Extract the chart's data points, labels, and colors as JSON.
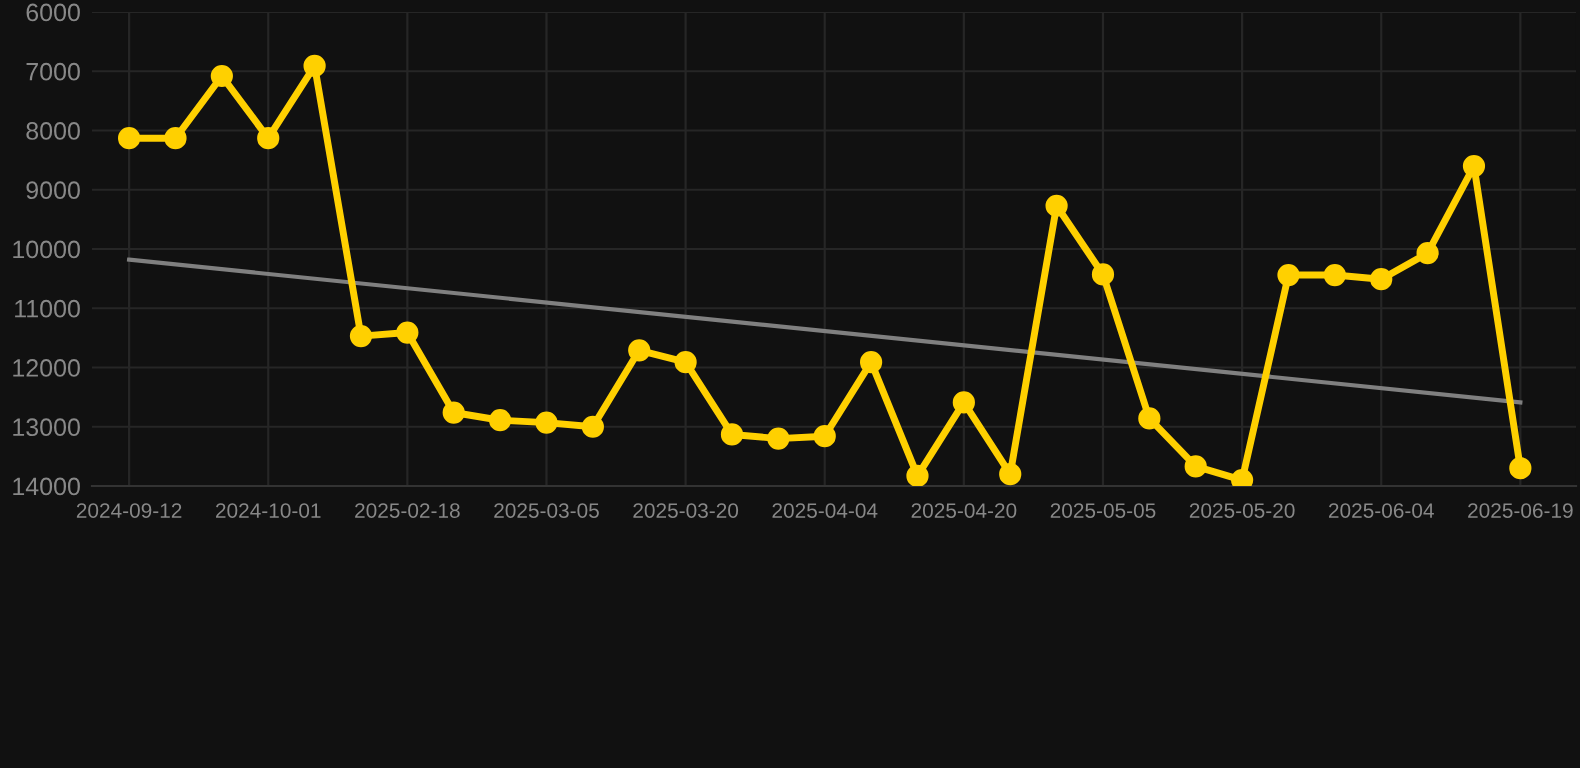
{
  "chart_data": {
    "type": "line",
    "categories": [
      "2024-09-12",
      null,
      null,
      "2024-10-01",
      null,
      null,
      "2025-02-18",
      null,
      null,
      "2025-03-05",
      null,
      null,
      "2025-03-20",
      null,
      null,
      "2025-04-04",
      null,
      null,
      "2025-04-20",
      null,
      null,
      "2025-05-05",
      null,
      null,
      "2025-05-20",
      null,
      null,
      "2025-06-04",
      null,
      null,
      "2025-06-19"
    ],
    "series": [
      {
        "color": "#ffd000",
        "marker": "circle",
        "values": [
          8130,
          8130,
          7080,
          8130,
          6910,
          11470,
          11410,
          12760,
          12890,
          12930,
          13000,
          11710,
          11910,
          13130,
          13200,
          13160,
          11910,
          13830,
          12590,
          13800,
          9270,
          10430,
          12860,
          13670,
          13900,
          10440,
          10440,
          10510,
          10070,
          8600,
          13700
        ]
      },
      {
        "color": "#808080",
        "marker": "none",
        "values": [
          10180,
          null,
          null,
          null,
          null,
          null,
          null,
          null,
          null,
          null,
          null,
          null,
          null,
          null,
          null,
          null,
          null,
          null,
          null,
          null,
          null,
          null,
          null,
          null,
          null,
          null,
          null,
          null,
          null,
          null,
          12590
        ]
      }
    ],
    "ylim": [
      14000,
      6000
    ],
    "yticks": [
      6000,
      7000,
      8000,
      9000,
      10000,
      11000,
      12000,
      13000,
      14000
    ],
    "grid": true,
    "line_style": "solid"
  }
}
